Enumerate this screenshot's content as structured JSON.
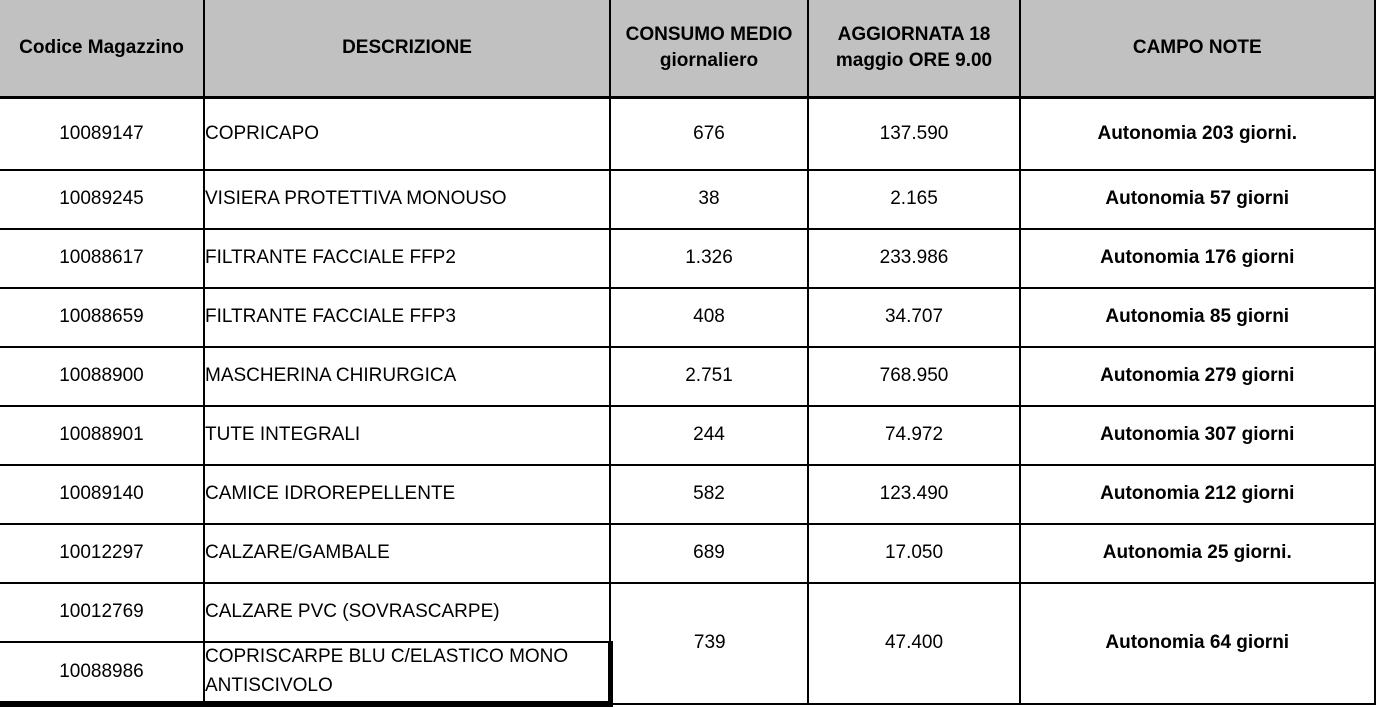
{
  "colors": {
    "header_bg": "#c1c1c1",
    "border": "#000000",
    "row_bg": "#ffffff",
    "text": "#000000"
  },
  "table": {
    "headers": {
      "codice": "Codice Magazzino",
      "descrizione": "DESCRIZIONE",
      "consumo_line1": "CONSUMO MEDIO",
      "consumo_line2": "giornaliero",
      "aggiornata_line1": "AGGIORNATA 18",
      "aggiornata_line2": "maggio ORE 9.00",
      "note": "CAMPO NOTE"
    },
    "rows": [
      {
        "codice": "10089147",
        "descrizione": "COPRICAPO",
        "consumo": "676",
        "aggiornata": "137.590",
        "note": "Autonomia 203 giorni."
      },
      {
        "codice": "10089245",
        "descrizione": "VISIERA PROTETTIVA MONOUSO",
        "consumo": "38",
        "aggiornata": "2.165",
        "note": "Autonomia 57 giorni"
      },
      {
        "codice": "10088617",
        "descrizione": "FILTRANTE FACCIALE FFP2",
        "consumo": "1.326",
        "aggiornata": "233.986",
        "note": "Autonomia 176 giorni"
      },
      {
        "codice": "10088659",
        "descrizione": "FILTRANTE FACCIALE FFP3",
        "consumo": "408",
        "aggiornata": "34.707",
        "note": "Autonomia 85 giorni"
      },
      {
        "codice": "10088900",
        "descrizione": "MASCHERINA CHIRURGICA",
        "consumo": "2.751",
        "aggiornata": "768.950",
        "note": "Autonomia 279 giorni"
      },
      {
        "codice": "10088901",
        "descrizione": "TUTE INTEGRALI",
        "consumo": "244",
        "aggiornata": "74.972",
        "note": "Autonomia 307 giorni"
      },
      {
        "codice": "10089140",
        "descrizione": "CAMICE IDROREPELLENTE",
        "consumo": "582",
        "aggiornata": "123.490",
        "note": "Autonomia 212 giorni"
      },
      {
        "codice": "10012297",
        "descrizione": "CALZARE/GAMBALE",
        "consumo": "689",
        "aggiornata": "17.050",
        "note": "Autonomia 25 giorni."
      },
      {
        "codice": "10012769",
        "descrizione": "CALZARE PVC (SOVRASCARPE)"
      },
      {
        "codice": "10088986",
        "descrizione": "COPRISCARPE BLU C/ELASTICO MONO ANTISCIVOLO"
      }
    ],
    "merged_group": {
      "consumo": "739",
      "aggiornata": "47.400",
      "note": "Autonomia 64 giorni"
    }
  }
}
